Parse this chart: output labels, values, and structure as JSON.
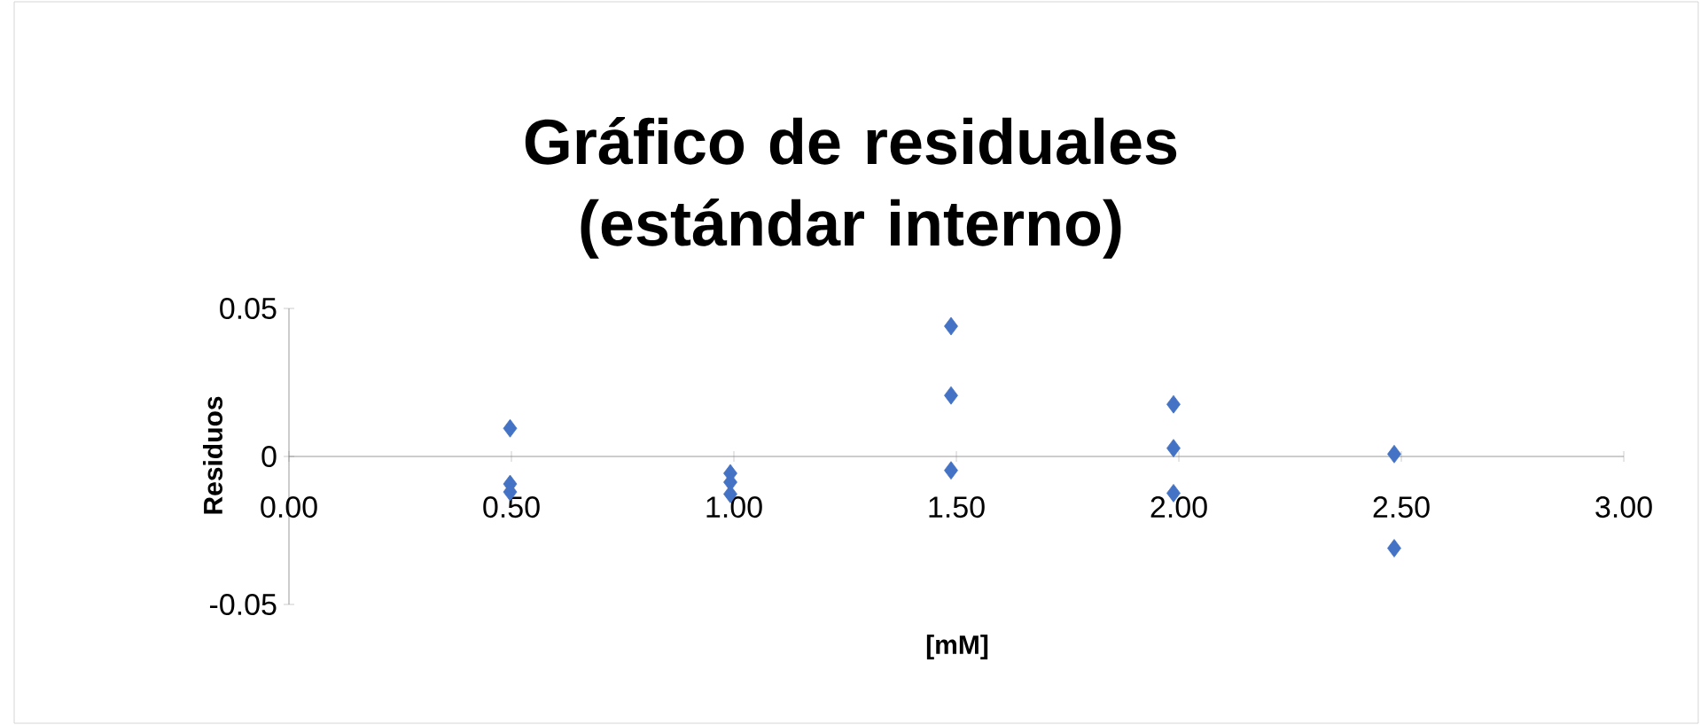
{
  "chart_data": {
    "type": "scatter",
    "title": "Gráfico de residuales (estándar interno)",
    "xlabel": "[mM]",
    "ylabel": "Residuos",
    "marker": "diamond",
    "series": [
      {
        "color": "#4472c4",
        "x": [
          0.497,
          0.497,
          0.497,
          0.992,
          0.992,
          0.992,
          1.488,
          1.488,
          1.488,
          1.988,
          1.988,
          1.988,
          2.484,
          2.484
        ],
        "values": [
          0.0095,
          -0.0093,
          -0.012,
          -0.0057,
          -0.0087,
          -0.0127,
          0.044,
          0.0206,
          -0.0047,
          0.0176,
          0.0028,
          -0.0124,
          0.0008,
          -0.031
        ]
      }
    ],
    "xlim": [
      0,
      3
    ],
    "ylim": [
      -0.05,
      0.05
    ],
    "xticks": [
      {
        "value": 0,
        "label": "0.00"
      },
      {
        "value": 0.5,
        "label": "0.50"
      },
      {
        "value": 1,
        "label": "1.00"
      },
      {
        "value": 1.5,
        "label": "1.50"
      },
      {
        "value": 2,
        "label": "2.00"
      },
      {
        "value": 2.5,
        "label": "2.50"
      },
      {
        "value": 3,
        "label": "3.00"
      }
    ],
    "yticks": [
      -0.05,
      0,
      0.05
    ]
  }
}
